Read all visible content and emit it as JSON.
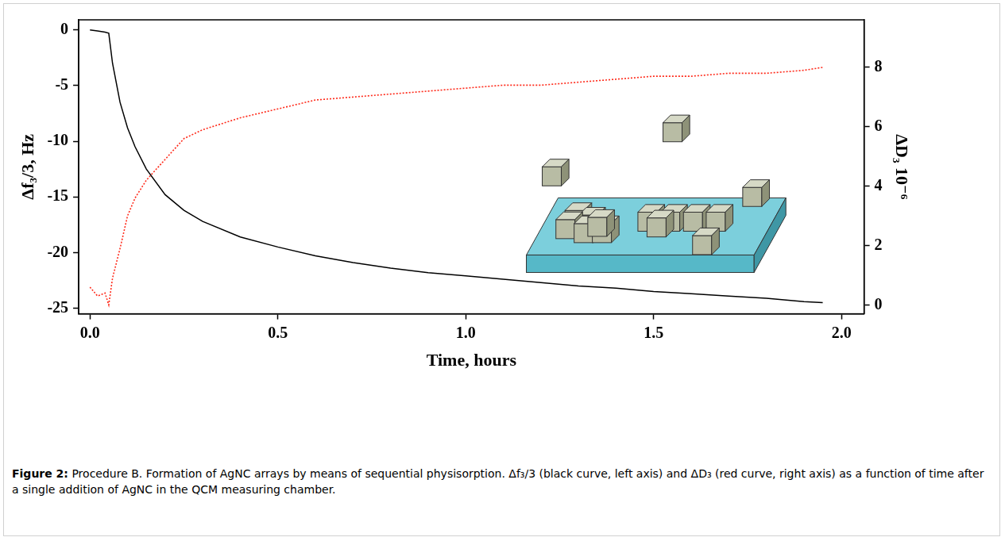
{
  "chart_data": {
    "type": "line",
    "x": [
      0,
      0.02,
      0.04,
      0.05,
      0.06,
      0.08,
      0.1,
      0.12,
      0.15,
      0.2,
      0.25,
      0.3,
      0.4,
      0.5,
      0.6,
      0.7,
      0.8,
      0.9,
      1.0,
      1.1,
      1.2,
      1.3,
      1.4,
      1.5,
      1.6,
      1.7,
      1.8,
      1.9,
      1.95
    ],
    "xlim": [
      -0.03,
      2.06
    ],
    "xticks": [
      {
        "value": 0,
        "label": "0.0"
      },
      {
        "value": 0.5,
        "label": "0.5"
      },
      {
        "value": 1,
        "label": "1.0"
      },
      {
        "value": 1.5,
        "label": "1.5"
      },
      {
        "value": 2,
        "label": "2.0"
      }
    ],
    "x_label": "Time, hours",
    "y_label": "Δf₃/3, Hz",
    "ylim": [
      -25.5,
      0.9
    ],
    "yticks": [
      -25,
      -20,
      -15,
      -10,
      -5,
      0
    ],
    "y2_label": "ΔD₃ 10⁻⁶",
    "y2lim": [
      -0.3,
      9.6
    ],
    "y2ticks": [
      0,
      2,
      4,
      6,
      8
    ],
    "grid": false,
    "series": [
      {
        "color": "#000000",
        "line_style": "solid",
        "values": [
          0,
          -0.1,
          -0.2,
          -0.3,
          -3,
          -6.5,
          -8.8,
          -10.5,
          -12.5,
          -14.8,
          -16.2,
          -17.2,
          -18.6,
          -19.5,
          -20.3,
          -20.9,
          -21.4,
          -21.8,
          -22.1,
          -22.4,
          -22.7,
          -23.0,
          -23.2,
          -23.5,
          -23.7,
          -23.9,
          -24.1,
          -24.4,
          -24.5
        ]
      },
      {
        "color": "#ff2a1a",
        "line_style": "dotted",
        "axis": "y2",
        "values": [
          0.6,
          0.3,
          0.4,
          0.0,
          0.9,
          1.9,
          3.0,
          3.6,
          4.2,
          4.9,
          5.6,
          5.9,
          6.3,
          6.6,
          6.9,
          7.0,
          7.1,
          7.2,
          7.3,
          7.4,
          7.4,
          7.5,
          7.6,
          7.7,
          7.7,
          7.8,
          7.8,
          7.9,
          8.0
        ]
      }
    ]
  },
  "caption": {
    "label": "Figure 2:",
    "text": "Procedure B. Formation of AgNC arrays by means of sequential physisorption. Δf₃/3 (black curve, left axis) and ΔD₃ (red curve, right axis) as a function of time after a single addition of AgNC in the QCM measuring chamber."
  }
}
